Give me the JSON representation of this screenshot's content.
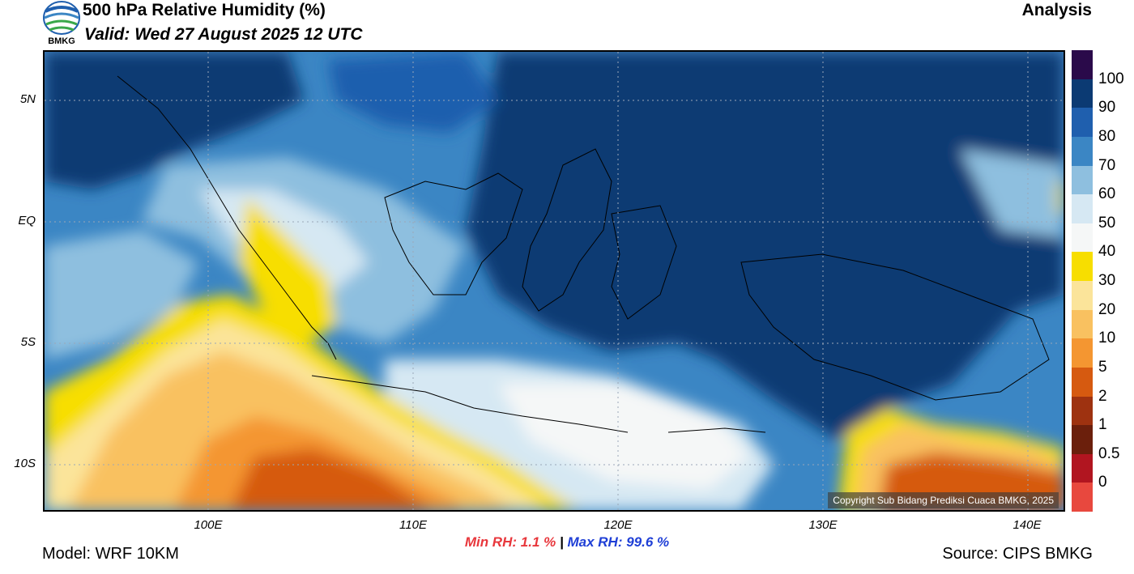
{
  "header": {
    "title": "500 hPa Relative Humidity (%)",
    "valid": "Valid: Wed 27 August 2025 12 UTC",
    "analysis": "Analysis",
    "logo_text": "BMKG"
  },
  "map": {
    "lat_labels": [
      "5N",
      "EQ",
      "5S",
      "10S"
    ],
    "lon_labels": [
      "100E",
      "110E",
      "120E",
      "130E",
      "140E"
    ],
    "copyright": "Copyright Sub Bidang Prediksi Cuaca BMKG, 2025",
    "gridline_color": "#9aa7b8"
  },
  "colorbar": {
    "levels": [
      "100",
      "90",
      "80",
      "70",
      "60",
      "50",
      "40",
      "30",
      "20",
      "10",
      "5",
      "2",
      "1",
      "0.5",
      "0"
    ],
    "colors": [
      "#2a0a4a",
      "#0b3a73",
      "#1f5fae",
      "#3b86c4",
      "#8ebfdf",
      "#d6e8f3",
      "#f5f7f7",
      "#f7de00",
      "#fbe49a",
      "#f9c160",
      "#f49631",
      "#d65a10",
      "#9e3210",
      "#6b1f0c",
      "#b11520",
      "#e8483e"
    ]
  },
  "stats": {
    "min_label": "Min RH:",
    "min_value": "1.1 %",
    "separator": "|",
    "max_label": "Max RH:",
    "max_value": "99.6 %"
  },
  "footer": {
    "model": "Model: WRF 10KM",
    "source": "Source: CIPS BMKG"
  }
}
